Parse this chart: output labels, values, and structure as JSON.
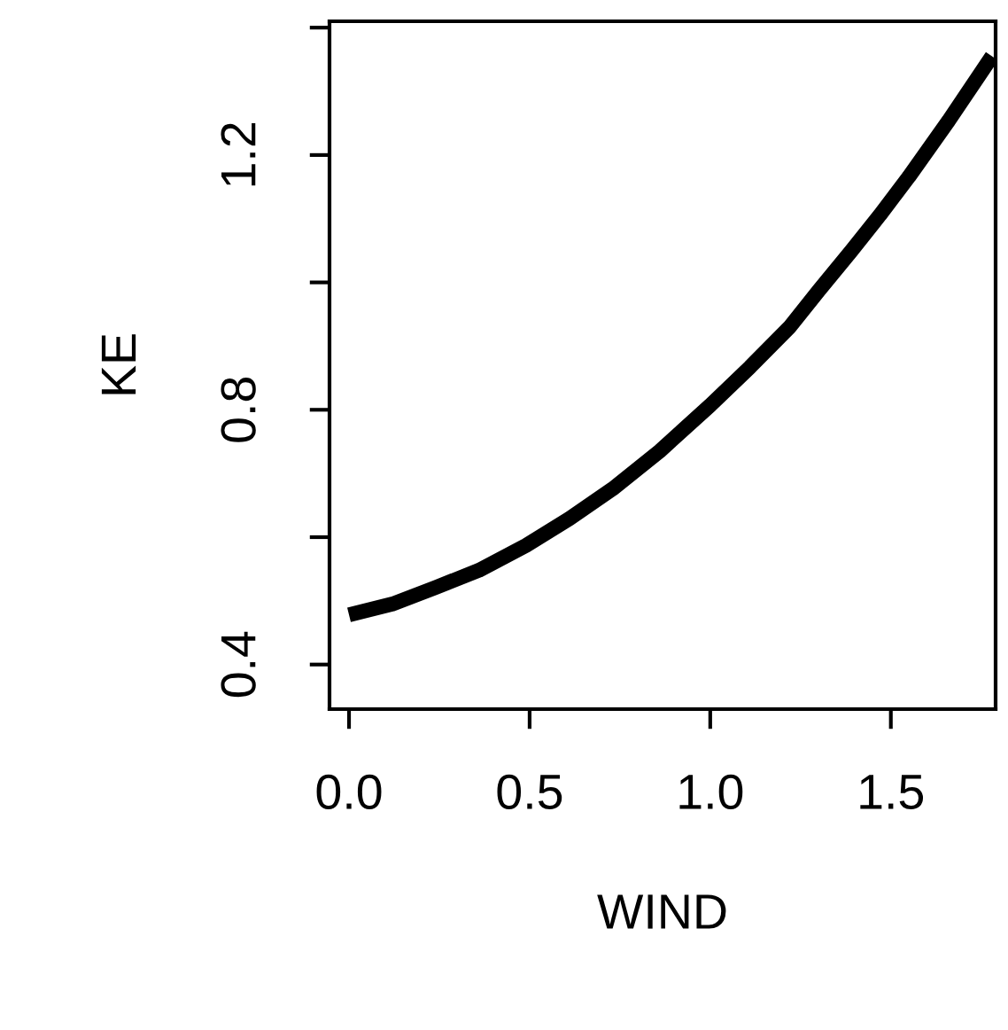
{
  "chart_data": {
    "type": "line",
    "xlabel": "WIND",
    "ylabel": "KE",
    "x": [
      0.0,
      0.12,
      0.24,
      0.36,
      0.49,
      0.61,
      0.73,
      0.86,
      1.0,
      1.11,
      1.22,
      1.3,
      1.39,
      1.47,
      1.55,
      1.66,
      1.78
    ],
    "series": [
      {
        "color": "#000000",
        "values": [
          0.478,
          0.495,
          0.521,
          0.548,
          0.587,
          0.629,
          0.676,
          0.735,
          0.807,
          0.867,
          0.93,
          0.987,
          1.049,
          1.106,
          1.166,
          1.254,
          1.355
        ]
      }
    ],
    "xlim": [
      -0.054,
      1.79
    ],
    "ylim": [
      0.33,
      1.41
    ],
    "xticks": [
      {
        "value": 0,
        "label": "0.0"
      },
      0.5,
      {
        "value": 1,
        "label": "1.0"
      },
      1.5
    ],
    "yticks": [
      0.4,
      {
        "value": 0.6,
        "label": null
      },
      0.8,
      {
        "value": 1.0,
        "label": null
      },
      1.2,
      {
        "value": 1.4,
        "label": null
      }
    ],
    "grid": false,
    "legend": false,
    "marker": "none",
    "line_style": "solid"
  }
}
